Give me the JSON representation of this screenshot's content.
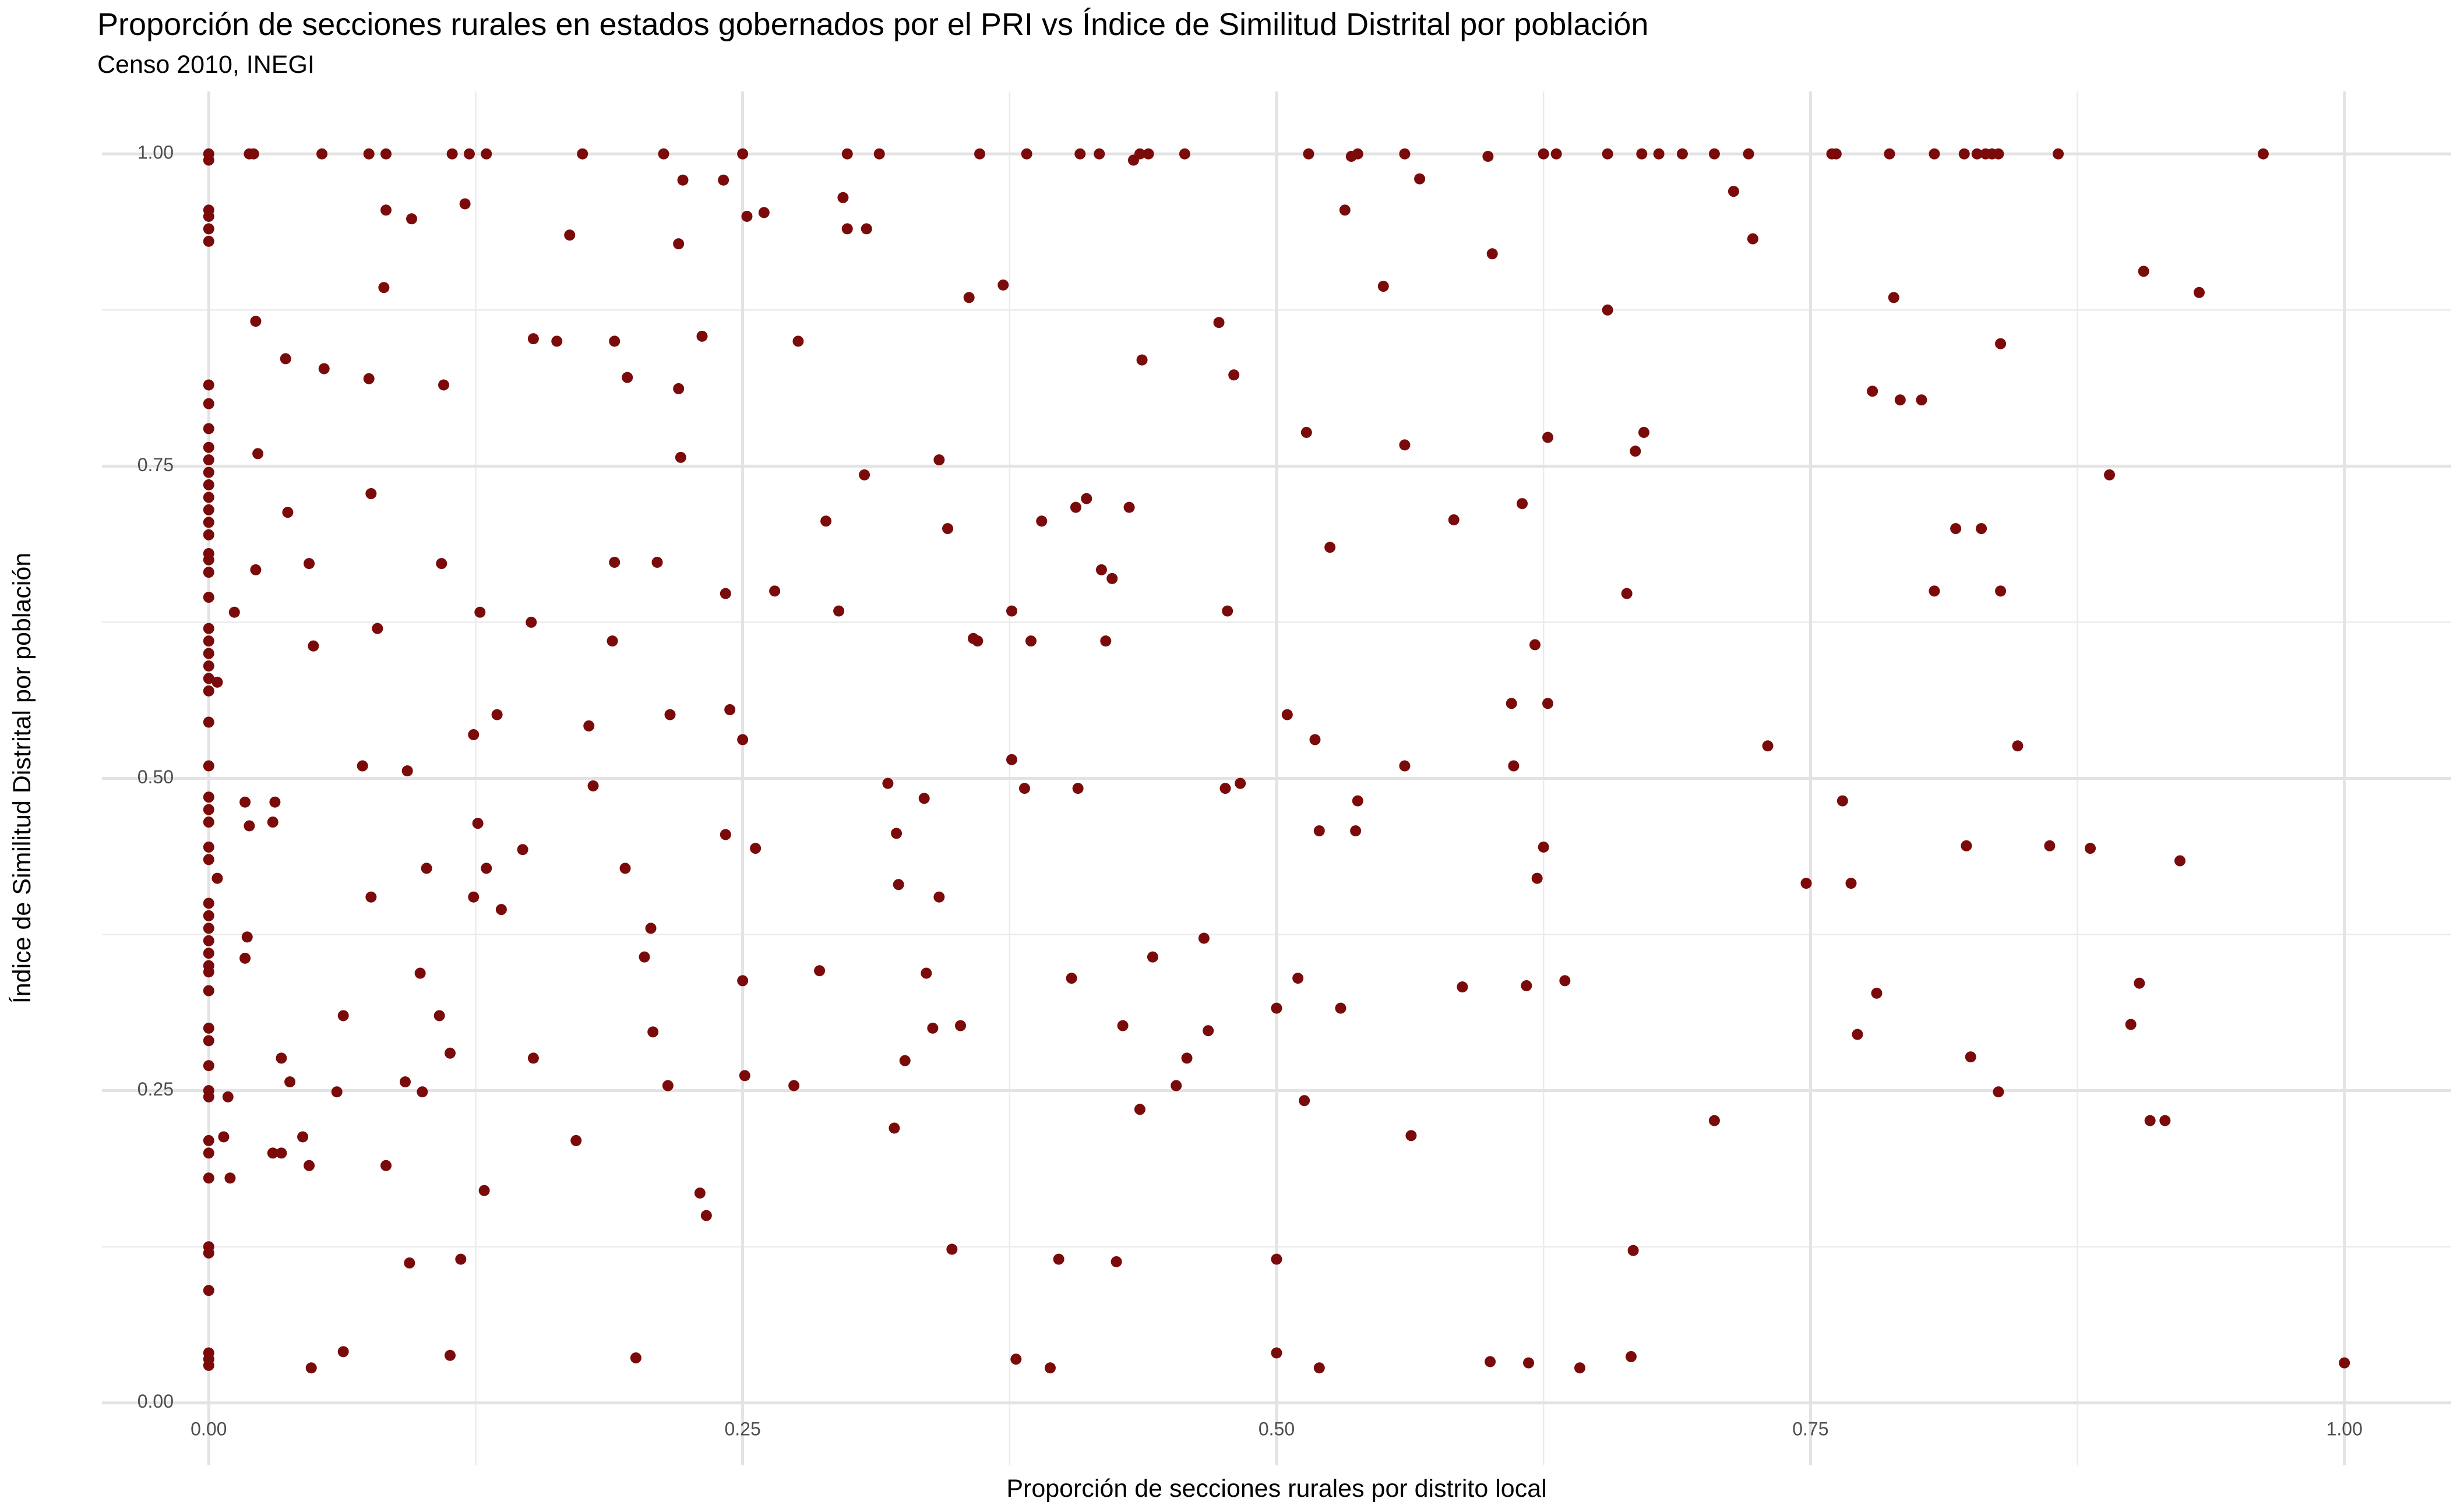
{
  "chart_data": {
    "type": "scatter",
    "title": "Proporción de secciones rurales en estados gobernados por el PRI vs Índice de Similitud Distrital por población",
    "subtitle": "Censo 2010, INEGI",
    "x_label": "Proporción de secciones rurales por distrito local",
    "y_label": "Índice de Similitud Distrital por población",
    "color": "#7b0a0a",
    "grid": true,
    "minor_grid": true,
    "xlim": [
      -0.05,
      1.05
    ],
    "ylim": [
      -0.05,
      1.05
    ],
    "xticks": [
      {
        "value": 0,
        "label": "0.00"
      },
      {
        "value": 0.25,
        "label": "0.25"
      },
      {
        "value": 0.5,
        "label": "0.50"
      },
      {
        "value": 0.75,
        "label": "0.75"
      },
      {
        "value": 1,
        "label": "1.00"
      }
    ],
    "yticks": [
      {
        "value": 0,
        "label": "0.00"
      },
      {
        "value": 0.25,
        "label": "0.25"
      },
      {
        "value": 0.5,
        "label": "0.50"
      },
      {
        "value": 0.75,
        "label": "0.75"
      },
      {
        "value": 1,
        "label": "1.00"
      }
    ],
    "x": [
      0,
      0,
      0,
      0,
      0,
      0,
      0,
      0,
      0,
      0,
      0,
      0,
      0,
      0,
      0,
      0,
      0,
      0,
      0,
      0,
      0,
      0,
      0,
      0,
      0,
      0,
      0,
      0,
      0,
      0,
      0,
      0,
      0,
      0,
      0,
      0,
      0,
      0,
      0,
      0,
      0,
      0,
      0,
      0,
      0,
      0,
      0,
      0,
      0,
      0,
      0,
      0,
      0,
      0,
      0,
      0,
      0.019,
      0.021,
      0.053,
      0.075,
      0.083,
      0.114,
      0.122,
      0.13,
      0.175,
      0.213,
      0.25,
      0.299,
      0.314,
      0.361,
      0.383,
      0.408,
      0.417,
      0.433,
      0.436,
      0.44,
      0.457,
      0.515,
      0.535,
      0.538,
      0.56,
      0.599,
      0.625,
      0.631,
      0.655,
      0.671,
      0.679,
      0.69,
      0.705,
      0.721,
      0.76,
      0.762,
      0.787,
      0.808,
      0.822,
      0.828,
      0.832,
      0.835,
      0.838,
      0.866,
      0.962,
      0.004,
      0.004,
      0.009,
      0.007,
      0.01,
      0.012,
      0.017,
      0.017,
      0.018,
      0.019,
      0.022,
      0.022,
      0.023,
      0.03,
      0.03,
      0.031,
      0.034,
      0.034,
      0.036,
      0.037,
      0.038,
      0.044,
      0.047,
      0.047,
      0.048,
      0.049,
      0.054,
      0.06,
      0.063,
      0.063,
      0.072,
      0.075,
      0.076,
      0.076,
      0.079,
      0.082,
      0.083,
      0.083,
      0.092,
      0.093,
      0.094,
      0.095,
      0.099,
      0.1,
      0.102,
      0.108,
      0.109,
      0.11,
      0.113,
      0.113,
      0.118,
      0.12,
      0.124,
      0.124,
      0.126,
      0.127,
      0.129,
      0.13,
      0.135,
      0.137,
      0.147,
      0.151,
      0.152,
      0.152,
      0.163,
      0.169,
      0.172,
      0.178,
      0.18,
      0.189,
      0.19,
      0.19,
      0.195,
      0.196,
      0.2,
      0.204,
      0.207,
      0.208,
      0.21,
      0.215,
      0.216,
      0.22,
      0.22,
      0.221,
      0.222,
      0.23,
      0.231,
      0.233,
      0.241,
      0.242,
      0.242,
      0.244,
      0.25,
      0.25,
      0.251,
      0.252,
      0.256,
      0.26,
      0.265,
      0.274,
      0.276,
      0.286,
      0.289,
      0.295,
      0.297,
      0.299,
      0.307,
      0.308,
      0.318,
      0.321,
      0.322,
      0.323,
      0.326,
      0.335,
      0.336,
      0.339,
      0.342,
      0.342,
      0.346,
      0.348,
      0.352,
      0.356,
      0.358,
      0.36,
      0.372,
      0.376,
      0.376,
      0.378,
      0.382,
      0.385,
      0.39,
      0.394,
      0.398,
      0.404,
      0.406,
      0.407,
      0.411,
      0.418,
      0.42,
      0.423,
      0.425,
      0.428,
      0.431,
      0.436,
      0.437,
      0.442,
      0.453,
      0.458,
      0.466,
      0.468,
      0.473,
      0.476,
      0.477,
      0.48,
      0.483,
      0.5,
      0.5,
      0.5,
      0.505,
      0.51,
      0.513,
      0.514,
      0.518,
      0.52,
      0.52,
      0.525,
      0.53,
      0.532,
      0.537,
      0.538,
      0.55,
      0.56,
      0.56,
      0.563,
      0.567,
      0.583,
      0.587,
      0.6,
      0.601,
      0.61,
      0.611,
      0.615,
      0.617,
      0.618,
      0.621,
      0.622,
      0.625,
      0.627,
      0.627,
      0.635,
      0.642,
      0.655,
      0.664,
      0.666,
      0.667,
      0.668,
      0.672,
      0.705,
      0.714,
      0.723,
      0.73,
      0.748,
      0.765,
      0.769,
      0.772,
      0.779,
      0.781,
      0.789,
      0.792,
      0.802,
      0.808,
      0.818,
      0.823,
      0.825,
      0.83,
      0.838,
      0.839,
      0.839,
      0.847,
      0.862,
      0.881,
      0.89,
      0.9,
      0.904,
      0.906,
      0.909,
      0.916,
      0.923,
      0.932,
      1.0
    ],
    "values": [
      1.0,
      0.995,
      0.955,
      0.95,
      0.94,
      0.93,
      0.815,
      0.8,
      0.78,
      0.765,
      0.755,
      0.745,
      0.735,
      0.725,
      0.715,
      0.705,
      0.695,
      0.68,
      0.675,
      0.665,
      0.645,
      0.62,
      0.61,
      0.6,
      0.59,
      0.58,
      0.57,
      0.545,
      0.51,
      0.485,
      0.475,
      0.465,
      0.445,
      0.435,
      0.4,
      0.39,
      0.38,
      0.37,
      0.36,
      0.35,
      0.345,
      0.33,
      0.3,
      0.29,
      0.27,
      0.25,
      0.245,
      0.21,
      0.2,
      0.18,
      0.125,
      0.12,
      0.09,
      0.04,
      0.035,
      0.03,
      1,
      1,
      1,
      1,
      1,
      1,
      1,
      1,
      1,
      1,
      1,
      1,
      1,
      1,
      1,
      1,
      1,
      0.995,
      1,
      1,
      1,
      1,
      0.998,
      1,
      1,
      0.998,
      1,
      1,
      1,
      1,
      1,
      1,
      1,
      1,
      1,
      1,
      1,
      1,
      1,
      1,
      1,
      1,
      1,
      1,
      1,
      0.577,
      0.42,
      0.245,
      0.213,
      0.18,
      0.633,
      0.356,
      0.481,
      0.373,
      0.462,
      0.866,
      0.667,
      0.76,
      0.2,
      0.465,
      0.481,
      0.276,
      0.2,
      0.836,
      0.713,
      0.257,
      0.213,
      0.19,
      0.672,
      0.028,
      0.606,
      0.828,
      0.249,
      0.31,
      0.041,
      0.51,
      0.82,
      0.728,
      0.405,
      0.62,
      0.893,
      0.19,
      0.955,
      0.257,
      0.506,
      0.112,
      0.948,
      0.344,
      0.249,
      0.428,
      0.31,
      0.672,
      0.815,
      0.28,
      0.038,
      0.115,
      0.96,
      0.535,
      0.405,
      0.464,
      0.633,
      0.17,
      0.428,
      0.551,
      0.395,
      0.443,
      0.625,
      0.276,
      0.852,
      0.85,
      0.935,
      0.21,
      0.542,
      0.494,
      0.61,
      0.673,
      0.85,
      0.428,
      0.821,
      0.036,
      0.357,
      0.38,
      0.297,
      0.673,
      0.254,
      0.551,
      0.812,
      0.928,
      0.757,
      0.979,
      0.168,
      0.854,
      0.15,
      0.979,
      0.455,
      0.648,
      0.555,
      0.531,
      0.338,
      0.262,
      0.95,
      0.444,
      0.953,
      0.65,
      0.254,
      0.85,
      0.346,
      0.706,
      0.634,
      0.965,
      0.94,
      0.743,
      0.94,
      0.496,
      0.22,
      0.456,
      0.415,
      0.274,
      0.484,
      0.344,
      0.3,
      0.405,
      0.755,
      0.7,
      0.123,
      0.302,
      0.885,
      0.612,
      0.61,
      0.895,
      0.634,
      0.515,
      0.035,
      0.492,
      0.61,
      0.706,
      0.028,
      0.115,
      0.34,
      0.717,
      0.492,
      0.724,
      0.667,
      0.61,
      0.66,
      0.113,
      0.302,
      0.717,
      0.235,
      0.835,
      0.357,
      0.254,
      0.276,
      0.372,
      0.298,
      0.865,
      0.492,
      0.634,
      0.823,
      0.496,
      0.316,
      0.115,
      0.04,
      0.551,
      0.34,
      0.242,
      0.777,
      0.531,
      0.458,
      0.028,
      0.685,
      0.316,
      0.955,
      0.458,
      0.482,
      0.894,
      0.767,
      0.51,
      0.214,
      0.98,
      0.707,
      0.333,
      0.033,
      0.92,
      0.56,
      0.51,
      0.72,
      0.334,
      0.032,
      0.607,
      0.42,
      0.445,
      0.773,
      0.56,
      0.338,
      0.028,
      0.875,
      0.648,
      0.037,
      0.122,
      0.762,
      0.777,
      0.226,
      0.97,
      0.932,
      0.526,
      0.416,
      0.482,
      0.416,
      0.295,
      0.81,
      0.328,
      0.885,
      0.803,
      0.803,
      0.65,
      0.7,
      0.446,
      0.277,
      0.7,
      0.249,
      0.65,
      0.848,
      0.526,
      0.446,
      0.444,
      0.743,
      0.303,
      0.336,
      0.906,
      0.226,
      0.226,
      0.434,
      0.889,
      0.032
    ]
  }
}
